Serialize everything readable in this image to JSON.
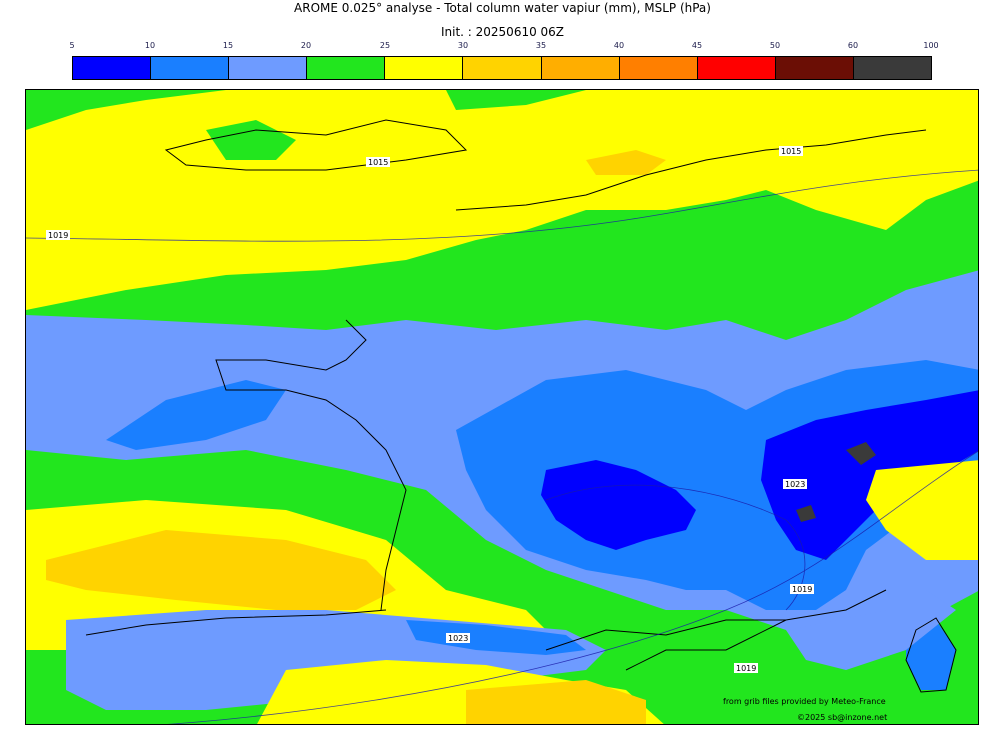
{
  "title": "AROME 0.025° analyse - Total column water vapiur (mm), MSLP (hPa)",
  "init": "Init. : 20250610 06Z",
  "colorbar": {
    "ticks": [
      "5",
      "10",
      "15",
      "20",
      "25",
      "30",
      "35",
      "40",
      "45",
      "50",
      "60",
      "100"
    ],
    "colors": [
      "#0000ff",
      "#1a7fff",
      "#6e9bff",
      "#22e61e",
      "#ffff00",
      "#ffd300",
      "#ffae00",
      "#ff7f00",
      "#ff0000",
      "#6b0e05",
      "#3a3a3a"
    ]
  },
  "isobars": {
    "north": "1015",
    "northeast": "1015",
    "west": "1019",
    "alps": "1023",
    "south_coast": "1019",
    "pyrenees": "1023",
    "southeast": "1019"
  },
  "credits": {
    "line1": "from grib files provided by Meteo-France",
    "line2": "©2025 sb@inzone.net"
  }
}
